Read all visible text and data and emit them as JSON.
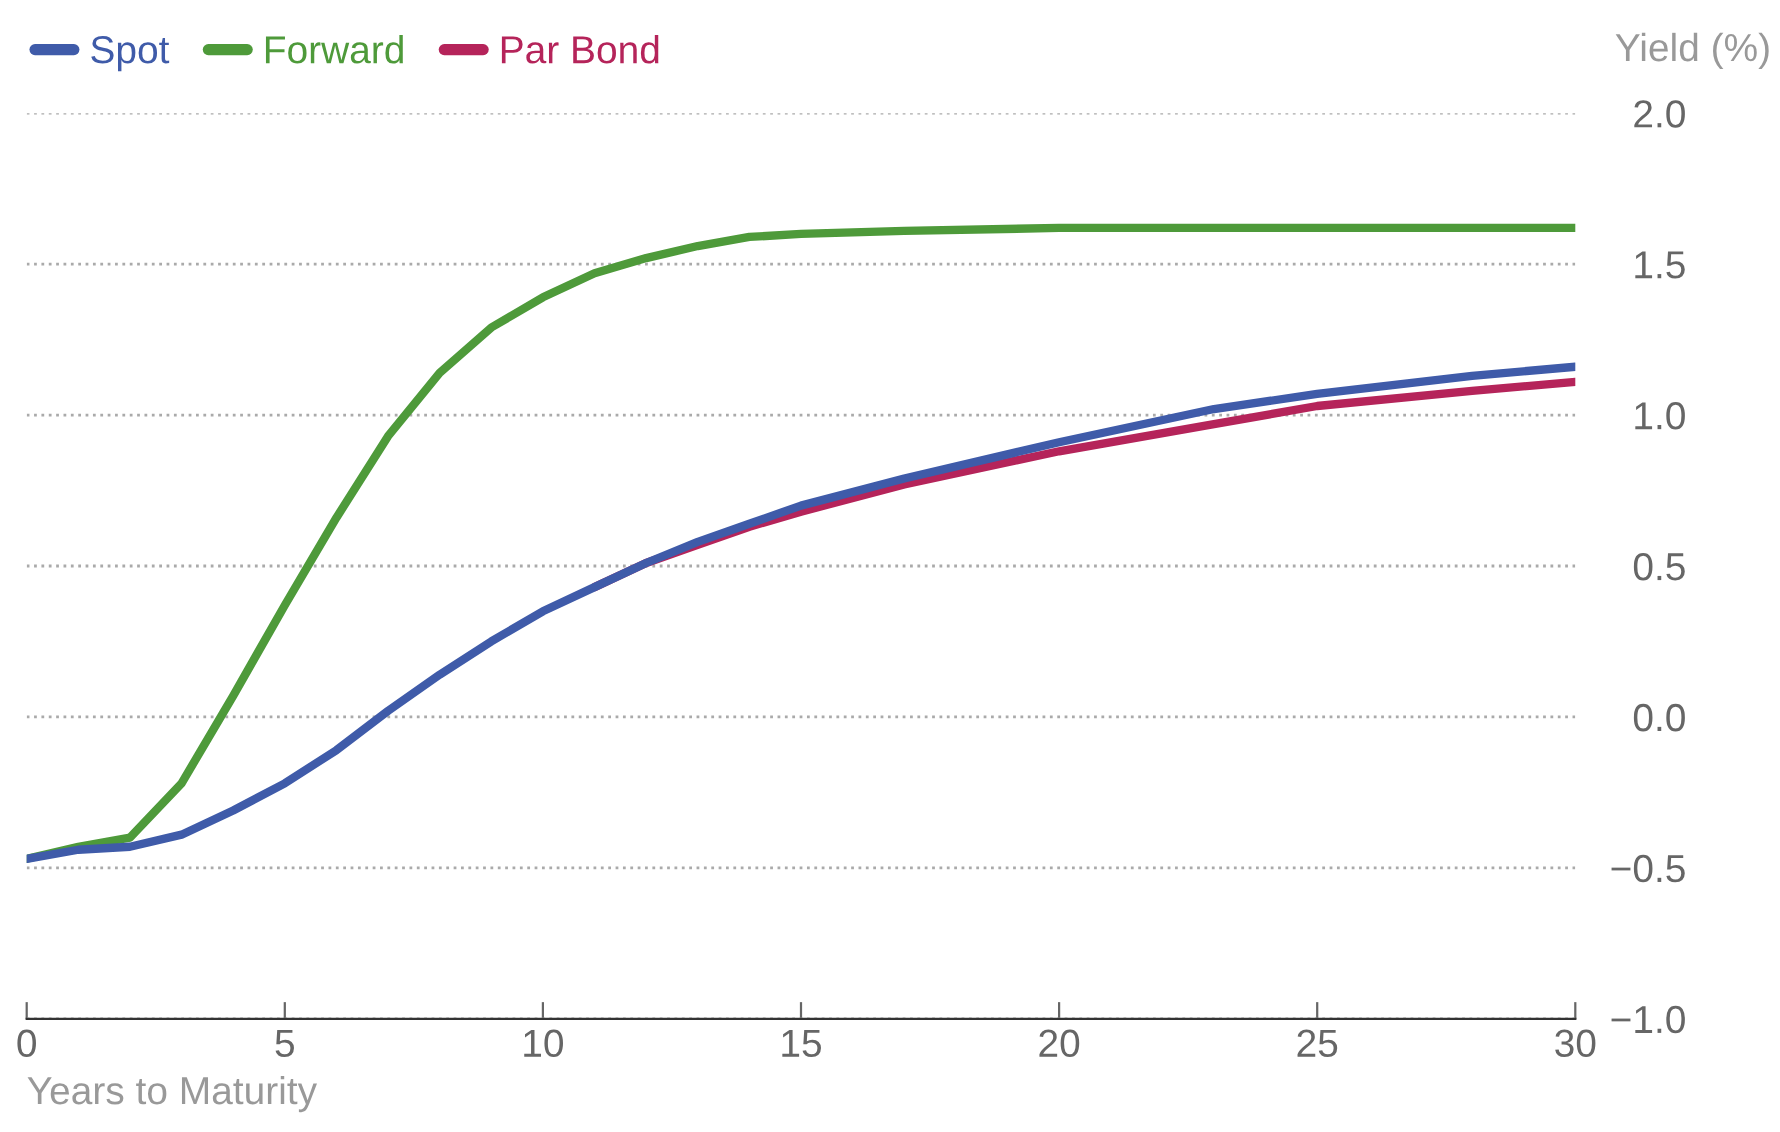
{
  "chart_data": {
    "type": "line",
    "xlabel": "Years to Maturity",
    "ylabel": "Yield (%)",
    "xlim": [
      0,
      30
    ],
    "xticks": [
      0,
      5,
      10,
      15,
      20,
      25,
      30
    ],
    "ylim": [
      -1,
      2
    ],
    "yticks": [
      {
        "value": -1.0,
        "label": "−1.0"
      },
      {
        "value": -0.5,
        "label": "−0.5"
      },
      {
        "value": 0.0,
        "label": "0.0"
      },
      {
        "value": 0.5,
        "label": "0.5"
      },
      {
        "value": 1.0,
        "label": "1.0"
      },
      {
        "value": 1.5,
        "label": "1.5"
      },
      {
        "value": 2.0,
        "label": "2.0"
      }
    ],
    "grid": "y",
    "legend": "top left",
    "marker": "none",
    "line_style": "solid",
    "x": [
      0,
      1,
      2,
      3,
      4,
      5,
      6,
      7,
      8,
      9,
      10,
      11,
      12,
      13,
      14,
      15,
      17,
      20,
      23,
      25,
      28,
      30
    ],
    "series": [
      {
        "name": "Spot",
        "color": "#3f5ba9",
        "values": [
          -0.47,
          -0.44,
          -0.43,
          -0.39,
          -0.31,
          -0.22,
          -0.11,
          0.02,
          0.14,
          0.25,
          0.35,
          0.43,
          0.51,
          0.58,
          0.64,
          0.7,
          0.79,
          0.91,
          1.02,
          1.07,
          1.13,
          1.16
        ]
      },
      {
        "name": "Forward",
        "color": "#4e9a3a",
        "values": [
          -0.47,
          -0.43,
          -0.4,
          -0.22,
          0.07,
          0.37,
          0.66,
          0.93,
          1.14,
          1.29,
          1.39,
          1.47,
          1.52,
          1.56,
          1.59,
          1.6,
          1.61,
          1.62,
          1.62,
          1.62,
          1.62,
          1.62
        ]
      },
      {
        "name": "Par Bond",
        "color": "#b5245a",
        "values": [
          null,
          null,
          null,
          null,
          null,
          null,
          null,
          null,
          null,
          null,
          null,
          0.43,
          0.51,
          0.57,
          0.63,
          0.68,
          0.77,
          0.88,
          0.97,
          1.03,
          1.08,
          1.11
        ]
      }
    ]
  }
}
